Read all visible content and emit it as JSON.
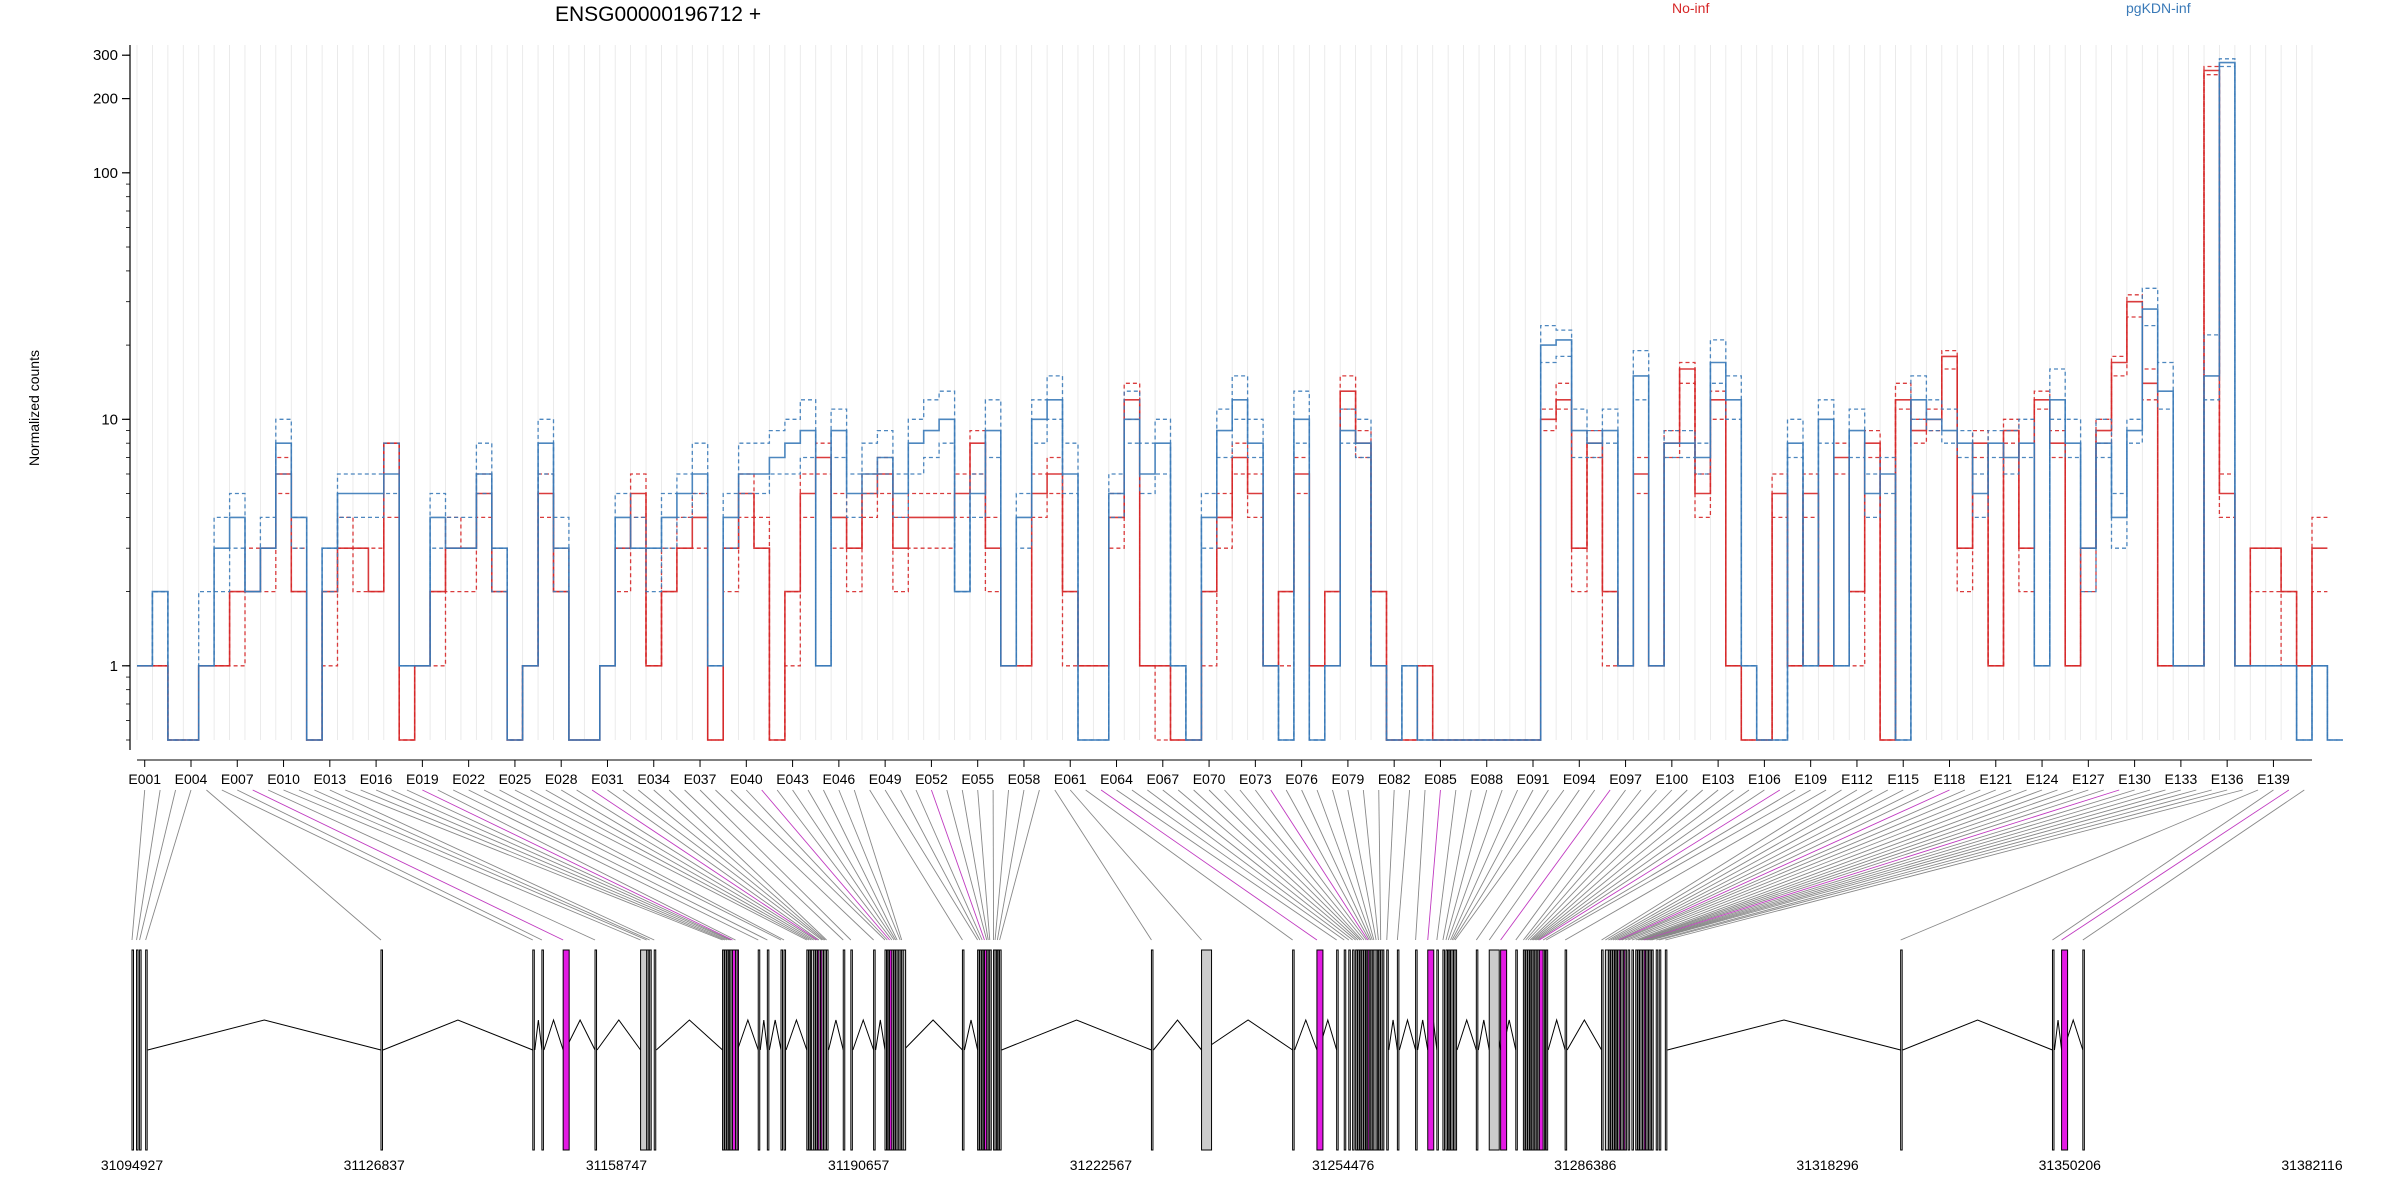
{
  "chart_data": {
    "type": "line",
    "title": "ENSG00000196712 +",
    "ylabel": "Normalized counts",
    "yscale": "log",
    "ylim": [
      0.5,
      330
    ],
    "yticks": [
      "1",
      "10",
      "100",
      "200",
      "300"
    ],
    "ytick_values": [
      1,
      10,
      100,
      200,
      300
    ],
    "legend": [
      {
        "name": "No-inf",
        "color": "#d62728"
      },
      {
        "name": "pgKDN-inf",
        "color": "#3a7ab8"
      }
    ],
    "exon_tick_labels": [
      "E001",
      "E004",
      "E007",
      "E010",
      "E013",
      "E016",
      "E019",
      "E022",
      "E025",
      "E028",
      "E031",
      "E034",
      "E037",
      "E040",
      "E043",
      "E046",
      "E049",
      "E052",
      "E055",
      "E058",
      "E061",
      "E064",
      "E067",
      "E070",
      "E073",
      "E076",
      "E079",
      "E082",
      "E085",
      "E088",
      "E091",
      "E094",
      "E097",
      "E100",
      "E103",
      "E106",
      "E109",
      "E112",
      "E115",
      "E118",
      "E121",
      "E124",
      "E127",
      "E130",
      "E133",
      "E136",
      "E139"
    ],
    "n_exons": 141,
    "series": [
      {
        "name": "No-inf",
        "condition": "No-inf",
        "values": [
          1,
          1,
          0.5,
          0.5,
          1,
          1,
          2,
          2,
          3,
          6,
          2,
          0.5,
          2,
          3,
          3,
          2,
          8,
          0.5,
          1,
          2,
          3,
          3,
          5,
          2,
          0.5,
          1,
          5,
          2,
          0.5,
          0.5,
          1,
          3,
          5,
          1,
          2,
          3,
          4,
          0.5,
          3,
          5,
          3,
          0.5,
          2,
          5,
          7,
          4,
          3,
          5,
          6,
          3,
          4,
          4,
          4,
          5,
          8,
          3,
          1,
          1,
          5,
          6,
          2,
          1,
          1,
          4,
          12,
          1,
          1,
          0.5,
          0.5,
          2,
          4,
          7,
          5,
          1,
          2,
          6,
          1,
          2,
          13,
          8,
          2,
          0.5,
          0.5,
          1,
          0.5,
          0.5,
          0.5,
          0.5,
          0.5,
          0.5,
          0.5,
          10,
          12,
          3,
          8,
          2,
          1,
          6,
          1,
          8,
          16,
          5,
          12,
          1,
          0.5,
          0.5,
          5,
          1,
          5,
          1,
          7,
          2,
          8,
          0.5,
          12,
          9,
          10,
          18,
          3,
          8,
          1,
          9,
          3,
          12,
          8,
          1,
          3,
          9,
          17,
          30,
          14,
          1,
          1,
          1,
          260,
          5,
          1,
          3,
          3,
          2,
          1,
          3
        ]
      },
      {
        "name": "No-inf",
        "condition": "No-inf",
        "values": [
          1,
          1,
          0.5,
          0.5,
          1,
          1,
          1,
          2,
          2,
          5,
          3,
          0.5,
          1,
          3,
          2,
          2,
          4,
          0.5,
          1,
          1,
          2,
          2,
          4,
          2,
          0.5,
          1,
          4,
          2,
          0.5,
          0.5,
          1,
          2,
          4,
          1,
          2,
          3,
          3,
          0.5,
          2,
          4,
          3,
          0.5,
          1,
          4,
          6,
          3,
          2,
          4,
          5,
          2,
          3,
          3,
          3,
          4,
          6,
          2,
          1,
          1,
          4,
          5,
          1,
          1,
          1,
          3,
          10,
          1,
          0.5,
          0.5,
          0.5,
          1,
          3,
          6,
          4,
          1,
          1,
          5,
          1,
          1,
          11,
          7,
          1,
          0.5,
          0.5,
          0.5,
          0.5,
          0.5,
          0.5,
          0.5,
          0.5,
          0.5,
          0.5,
          9,
          11,
          2,
          7,
          1,
          1,
          5,
          1,
          7,
          14,
          4,
          10,
          1,
          0.5,
          0.5,
          4,
          1,
          4,
          1,
          6,
          1,
          7,
          0.5,
          11,
          8,
          9,
          16,
          2,
          7,
          1,
          8,
          2,
          11,
          7,
          1,
          2,
          8,
          15,
          26,
          12,
          1,
          1,
          1,
          250,
          4,
          1,
          2,
          2,
          1,
          1,
          2
        ]
      },
      {
        "name": "No-inf",
        "condition": "No-inf",
        "values": [
          1,
          1,
          0.5,
          0.5,
          1,
          1,
          2,
          3,
          3,
          7,
          2,
          0.5,
          2,
          4,
          3,
          3,
          8,
          0.5,
          1,
          2,
          4,
          3,
          6,
          3,
          0.5,
          1,
          6,
          3,
          0.5,
          0.5,
          1,
          3,
          6,
          1,
          3,
          4,
          5,
          0.5,
          3,
          6,
          4,
          0.5,
          2,
          6,
          8,
          5,
          3,
          6,
          7,
          4,
          5,
          5,
          5,
          6,
          9,
          4,
          1,
          1,
          6,
          7,
          2,
          1,
          1,
          5,
          14,
          1,
          1,
          0.5,
          0.5,
          2,
          5,
          8,
          6,
          1,
          2,
          7,
          1,
          2,
          15,
          9,
          2,
          0.5,
          0.5,
          1,
          0.5,
          0.5,
          0.5,
          0.5,
          0.5,
          0.5,
          0.5,
          11,
          14,
          3,
          9,
          2,
          1,
          7,
          1,
          9,
          17,
          6,
          13,
          1,
          0.5,
          0.5,
          6,
          1,
          6,
          1,
          8,
          2,
          9,
          0.5,
          14,
          10,
          11,
          19,
          3,
          9,
          1,
          10,
          3,
          13,
          9,
          1,
          3,
          10,
          18,
          32,
          16,
          1,
          1,
          1,
          270,
          6,
          1,
          3,
          3,
          2,
          1,
          4
        ]
      },
      {
        "name": "pgKDN-inf",
        "condition": "pgKDN-inf",
        "values": [
          1,
          2,
          0.5,
          0.5,
          1,
          3,
          4,
          2,
          3,
          8,
          4,
          0.5,
          3,
          5,
          5,
          5,
          6,
          1,
          1,
          4,
          3,
          3,
          6,
          3,
          0.5,
          1,
          8,
          3,
          0.5,
          0.5,
          1,
          4,
          3,
          3,
          4,
          5,
          6,
          1,
          4,
          6,
          6,
          7,
          8,
          9,
          1,
          9,
          5,
          6,
          7,
          5,
          8,
          9,
          10,
          2,
          5,
          9,
          1,
          4,
          10,
          12,
          6,
          0.5,
          0.5,
          5,
          10,
          6,
          8,
          1,
          0.5,
          4,
          9,
          12,
          8,
          1,
          0.5,
          10,
          0.5,
          1,
          9,
          8,
          1,
          0.5,
          1,
          0.5,
          0.5,
          0.5,
          0.5,
          0.5,
          0.5,
          0.5,
          0.5,
          20,
          21,
          9,
          8,
          9,
          1,
          15,
          1,
          8,
          8,
          7,
          17,
          12,
          1,
          0.5,
          0.5,
          8,
          1,
          10,
          1,
          9,
          5,
          6,
          0.5,
          12,
          10,
          9,
          8,
          5,
          8,
          7,
          8,
          1,
          12,
          8,
          3,
          8,
          4,
          9,
          28,
          13,
          1,
          1,
          15,
          280,
          1,
          1,
          1,
          1,
          0.5,
          1,
          0.5
        ]
      },
      {
        "name": "pgKDN-inf",
        "condition": "pgKDN-inf",
        "values": [
          1,
          2,
          0.5,
          0.5,
          1,
          2,
          3,
          2,
          3,
          6,
          3,
          0.5,
          2,
          4,
          4,
          4,
          5,
          1,
          1,
          3,
          3,
          3,
          5,
          2,
          0.5,
          1,
          6,
          2,
          0.5,
          0.5,
          1,
          3,
          3,
          2,
          3,
          4,
          5,
          1,
          3,
          5,
          5,
          6,
          6,
          7,
          1,
          7,
          4,
          5,
          6,
          4,
          6,
          7,
          8,
          2,
          4,
          7,
          1,
          3,
          8,
          10,
          5,
          0.5,
          0.5,
          4,
          8,
          5,
          6,
          1,
          0.5,
          3,
          7,
          10,
          7,
          1,
          0.5,
          8,
          0.5,
          1,
          8,
          7,
          1,
          0.5,
          1,
          0.5,
          0.5,
          0.5,
          0.5,
          0.5,
          0.5,
          0.5,
          0.5,
          17,
          18,
          7,
          7,
          8,
          1,
          12,
          1,
          7,
          7,
          6,
          14,
          10,
          1,
          0.5,
          0.5,
          7,
          1,
          8,
          1,
          7,
          4,
          5,
          0.5,
          10,
          9,
          8,
          7,
          4,
          7,
          6,
          7,
          1,
          10,
          7,
          2,
          7,
          3,
          8,
          24,
          11,
          1,
          1,
          12,
          270,
          1,
          1,
          1,
          1,
          0.5,
          1,
          0.5
        ]
      },
      {
        "name": "pgKDN-inf",
        "condition": "pgKDN-inf",
        "values": [
          1,
          2,
          0.5,
          0.5,
          2,
          4,
          5,
          2,
          4,
          10,
          4,
          0.5,
          3,
          6,
          6,
          6,
          8,
          1,
          1,
          5,
          4,
          4,
          8,
          3,
          0.5,
          1,
          10,
          4,
          0.5,
          0.5,
          1,
          5,
          4,
          3,
          5,
          6,
          8,
          1,
          5,
          8,
          8,
          9,
          10,
          12,
          1,
          11,
          6,
          8,
          9,
          6,
          10,
          12,
          13,
          2,
          6,
          12,
          1,
          5,
          12,
          15,
          8,
          0.5,
          0.5,
          6,
          13,
          8,
          10,
          1,
          0.5,
          5,
          11,
          15,
          10,
          1,
          0.5,
          13,
          0.5,
          1,
          11,
          10,
          1,
          0.5,
          1,
          0.5,
          0.5,
          0.5,
          0.5,
          0.5,
          0.5,
          0.5,
          0.5,
          24,
          23,
          11,
          9,
          11,
          1,
          19,
          1,
          9,
          9,
          8,
          21,
          15,
          1,
          0.5,
          0.5,
          10,
          1,
          12,
          1,
          11,
          6,
          7,
          0.5,
          15,
          12,
          11,
          9,
          6,
          9,
          9,
          10,
          1,
          16,
          10,
          3,
          10,
          5,
          10,
          34,
          17,
          1,
          1,
          22,
          290,
          1,
          1,
          1,
          1,
          0.5,
          1,
          0.5
        ]
      }
    ],
    "gene_axis_labels": [
      "31094927",
      "31126837",
      "31158747",
      "31190657",
      "31222567",
      "31254476",
      "31286386",
      "31318296",
      "31350206",
      "31382116"
    ],
    "colors": {
      "no_inf": "#d62728",
      "pgkdn_inf": "#3a7ab8",
      "highlight_exon": "#e31be3",
      "gray_exon": "#cccccc",
      "grid": "#e6e6e6"
    }
  }
}
